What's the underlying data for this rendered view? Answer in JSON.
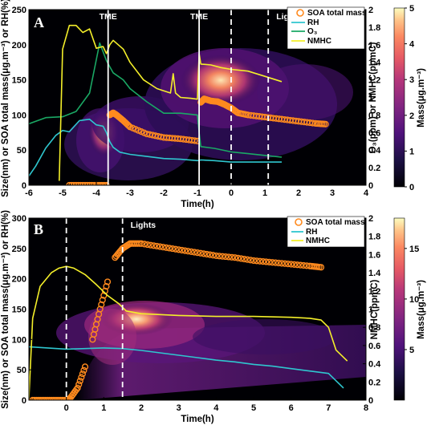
{
  "colors": {
    "soa": "#ff8a1e",
    "rh": "#2fc6cf",
    "o3": "#1aa865",
    "nmhc": "#f4ef2a",
    "marker_line": "#ffffff"
  },
  "chart_data": [
    {
      "type": "heatmap",
      "panel": "A",
      "xlabel": "Time(h)",
      "ylabel": "Size(nm) or SOA total mass(μg.m⁻³) or RH(%)",
      "y2label": "O₃(ppm) or NMHC(ppmC)",
      "colorbar_label": "Mass(μg.m⁻³)",
      "xlim": [
        -6,
        4
      ],
      "ylim": [
        0,
        250
      ],
      "y2lim": [
        0,
        2
      ],
      "colorbar_lim": [
        0,
        5
      ],
      "xticks": [
        "-6",
        "-5",
        "-4",
        "-3",
        "-2",
        "-1",
        "0",
        "1",
        "2",
        "3",
        "4"
      ],
      "yticks": [
        "0",
        "50",
        "100",
        "150",
        "200",
        "250"
      ],
      "y2ticks": [
        "0",
        "0.2",
        "0.4",
        "0.6",
        "0.8",
        "1",
        "1.2",
        "1.4",
        "1.6",
        "1.8",
        "2"
      ],
      "colorbar_ticks": [
        "0",
        "1",
        "2",
        "3",
        "4",
        "5"
      ],
      "markers": [
        {
          "label": "TME",
          "x": -3.65,
          "style": "solid"
        },
        {
          "label": "TME",
          "x": -0.95,
          "style": "solid"
        },
        {
          "label": "",
          "x": 0.0,
          "style": "dashed"
        },
        {
          "label": "Lights",
          "x": 1.1,
          "style": "dashed"
        }
      ],
      "legend_position": "top-right",
      "legend": [
        "SOA total mass",
        "RH",
        "O₃",
        "NMHC"
      ],
      "series": [
        {
          "name": "SOA total mass",
          "axis": "left",
          "marker": "circle",
          "x": [
            -4.8,
            -4.4,
            -4.0,
            -3.7,
            -3.6,
            -3.5,
            -3.4,
            -3.2,
            -3.0,
            -2.5,
            -2.0,
            -1.5,
            -1.0,
            -0.9,
            -0.8,
            -0.6,
            -0.4,
            -0.2,
            0.0,
            0.2,
            0.5,
            1.0,
            1.5,
            2.0,
            2.5,
            2.8
          ],
          "y": [
            0,
            0,
            0,
            0,
            100,
            103,
            100,
            92,
            83,
            73,
            68,
            66,
            63,
            118,
            123,
            120,
            119,
            115,
            110,
            103,
            100,
            97,
            94,
            91,
            88,
            87
          ]
        },
        {
          "name": "RH",
          "axis": "left",
          "x": [
            -6.0,
            -5.8,
            -5.5,
            -5.2,
            -5.0,
            -4.8,
            -4.5,
            -4.2,
            -4.0,
            -3.8,
            -3.7,
            -3.6,
            -3.5,
            -3.3,
            -3.0,
            -2.5,
            -2.0,
            -1.5,
            -1.0,
            -0.9,
            -0.5,
            0.0,
            0.5,
            1.0,
            1.5
          ],
          "y": [
            13,
            27,
            53,
            71,
            78,
            76,
            92,
            94,
            86,
            84,
            75,
            62,
            54,
            47,
            44,
            41,
            38,
            37,
            35,
            36,
            35,
            33,
            33,
            33,
            33
          ]
        },
        {
          "name": "O₃",
          "axis": "right",
          "x": [
            -6.0,
            -5.5,
            -5.0,
            -4.6,
            -4.2,
            -3.9,
            -3.7,
            -3.6,
            -3.5,
            -3.2,
            -3.0,
            -2.5,
            -2.0,
            -1.5,
            -1.0,
            -0.95,
            -0.9,
            -0.5,
            0.0,
            0.5,
            1.0,
            1.5
          ],
          "y": [
            0.7,
            0.77,
            0.78,
            0.84,
            1.05,
            1.62,
            1.42,
            1.35,
            1.28,
            1.2,
            1.1,
            0.95,
            0.82,
            0.82,
            0.8,
            0.6,
            0.44,
            0.42,
            0.38,
            0.36,
            0.34,
            0.32
          ]
        },
        {
          "name": "NMHC",
          "axis": "right",
          "x": [
            -5.1,
            -5.0,
            -4.8,
            -4.6,
            -4.4,
            -4.2,
            -4.0,
            -3.8,
            -3.7,
            -3.6,
            -3.5,
            -3.2,
            -3.0,
            -2.6,
            -2.2,
            -1.8,
            -1.72,
            -1.65,
            -1.5,
            -1.2,
            -1.0,
            -0.95,
            -0.9,
            -0.6,
            -0.3,
            0.0,
            0.5,
            1.0,
            1.5
          ],
          "y": [
            0.05,
            1.55,
            1.82,
            1.82,
            1.74,
            1.78,
            1.56,
            1.58,
            1.5,
            1.6,
            1.65,
            1.55,
            1.4,
            1.2,
            1.1,
            1.05,
            1.27,
            1.05,
            1.0,
            0.99,
            0.98,
            1.5,
            1.38,
            1.37,
            1.34,
            1.32,
            1.3,
            1.24,
            1.18
          ]
        }
      ]
    },
    {
      "type": "heatmap",
      "panel": "B",
      "xlabel": "Time(h)",
      "ylabel": "Size(nm) or SOA total mass(μg.m⁻³) or RH(%)",
      "y2label": "NMHC(ppmC)",
      "colorbar_label": "Mass(μg.m⁻³)",
      "xlim": [
        -1,
        8
      ],
      "ylim": [
        0,
        300
      ],
      "y2lim": [
        0,
        2
      ],
      "colorbar_lim": [
        0,
        18
      ],
      "xticks": [
        "0",
        "1",
        "2",
        "3",
        "4",
        "5",
        "6",
        "7",
        "8"
      ],
      "yticks": [
        "0",
        "50",
        "100",
        "150",
        "200",
        "250",
        "300"
      ],
      "y2ticks": [
        "0",
        "0.2",
        "0.4",
        "0.6",
        "0.8",
        "1",
        "1.2",
        "1.4",
        "1.6",
        "1.8",
        "2"
      ],
      "colorbar_ticks": [
        "5",
        "10",
        "15"
      ],
      "markers": [
        {
          "label": "",
          "x": 0.0,
          "style": "dashed"
        },
        {
          "label": "Lights",
          "x": 1.5,
          "style": "dashed"
        }
      ],
      "legend_position": "top-right",
      "legend": [
        "SOA total mass",
        "RH",
        "NMHC"
      ],
      "series": [
        {
          "name": "SOA total mass",
          "axis": "left",
          "marker": "circle",
          "x": [
            -0.9,
            -0.6,
            -0.3,
            0.0,
            0.1,
            0.3,
            0.5,
            0.7,
            0.9,
            1.1,
            1.3,
            1.5,
            1.7,
            2.0,
            2.5,
            3.0,
            3.5,
            4.0,
            4.5,
            5.0,
            5.5,
            6.0,
            6.5,
            6.8
          ],
          "y": [
            0,
            0,
            0,
            0,
            3,
            20,
            55,
            100,
            150,
            195,
            235,
            250,
            258,
            258,
            253,
            248,
            243,
            238,
            235,
            230,
            227,
            224,
            221,
            219
          ]
        },
        {
          "name": "RH",
          "axis": "left",
          "x": [
            -1.0,
            -0.5,
            0.0,
            0.5,
            1.0,
            1.5,
            2.0,
            2.5,
            3.0,
            3.5,
            4.0,
            4.5,
            5.0,
            5.5,
            6.0,
            6.5,
            7.0,
            7.4
          ],
          "y": [
            88,
            86,
            84,
            85,
            86,
            85,
            82,
            78,
            74,
            70,
            66,
            63,
            59,
            56,
            52,
            48,
            44,
            20
          ]
        },
        {
          "name": "NMHC",
          "axis": "right",
          "x": [
            -1.0,
            -0.9,
            -0.7,
            -0.4,
            -0.2,
            0.0,
            0.2,
            0.5,
            0.8,
            1.1,
            1.4,
            1.6,
            2.0,
            2.5,
            3.0,
            4.0,
            5.0,
            6.0,
            6.5,
            6.8,
            7.0,
            7.2,
            7.5
          ],
          "y": [
            0.02,
            0.9,
            1.25,
            1.4,
            1.45,
            1.47,
            1.45,
            1.38,
            1.27,
            1.15,
            1.06,
            0.98,
            0.95,
            0.94,
            0.93,
            0.92,
            0.92,
            0.91,
            0.9,
            0.88,
            0.8,
            0.55,
            0.43
          ]
        }
      ]
    }
  ]
}
